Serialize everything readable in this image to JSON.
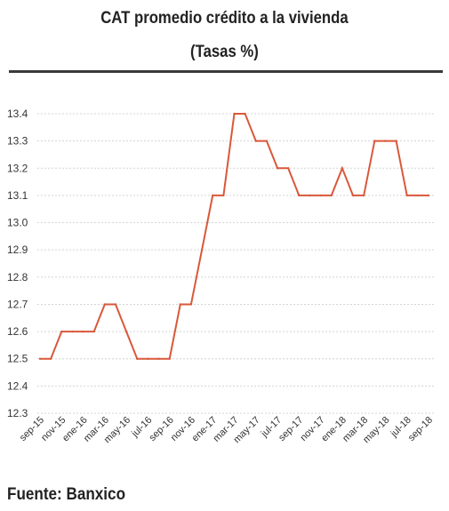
{
  "header": {
    "title_line1": "CAT promedio crédito a la vivienda",
    "title_line2": "(Tasas %)"
  },
  "footer": {
    "source": "Fuente: Banxico"
  },
  "colors": {
    "line": "#d9583b",
    "grid": "#d4d4d4",
    "text": "#333333"
  },
  "chart_data": {
    "type": "line",
    "title": "CAT promedio crédito a la vivienda",
    "subtitle": "(Tasas %)",
    "xlabel": "",
    "ylabel": "",
    "ylim": [
      12.3,
      13.4
    ],
    "yticks": [
      "12.3",
      "12.4",
      "12.5",
      "12.6",
      "12.7",
      "12.8",
      "12.9",
      "13.0",
      "13.1",
      "13.2",
      "13.3",
      "13.4"
    ],
    "grid": true,
    "legend": "none",
    "x": [
      "sep-15",
      "oct-15",
      "nov-15",
      "dic-15",
      "ene-16",
      "feb-16",
      "mar-16",
      "abr-16",
      "may-16",
      "jun-16",
      "jul-16",
      "ago-16",
      "sep-16",
      "oct-16",
      "nov-16",
      "dic-16",
      "ene-17",
      "feb-17",
      "mar-17",
      "abr-17",
      "may-17",
      "jun-17",
      "jul-17",
      "ago-17",
      "sep-17",
      "oct-17",
      "nov-17",
      "dic-17",
      "ene-18",
      "feb-18",
      "mar-18",
      "abr-18",
      "may-18",
      "jun-18",
      "jul-18",
      "ago-18",
      "sep-18"
    ],
    "xticks": [
      "sep-15",
      "nov-15",
      "ene-16",
      "mar-16",
      "may-16",
      "jul-16",
      "sep-16",
      "nov-16",
      "ene-17",
      "mar-17",
      "may-17",
      "jul-17",
      "sep-17",
      "nov-17",
      "ene-18",
      "mar-18",
      "may-18",
      "jul-18",
      "sep-18"
    ],
    "series": [
      {
        "values": [
          12.5,
          12.5,
          12.6,
          12.6,
          12.6,
          12.6,
          12.7,
          12.7,
          12.6,
          12.5,
          12.5,
          12.5,
          12.5,
          12.7,
          12.7,
          12.9,
          13.1,
          13.1,
          13.4,
          13.4,
          13.3,
          13.3,
          13.2,
          13.2,
          13.1,
          13.1,
          13.1,
          13.1,
          13.2,
          13.1,
          13.1,
          13.3,
          13.3,
          13.3,
          13.1,
          13.1,
          13.1
        ]
      }
    ]
  }
}
